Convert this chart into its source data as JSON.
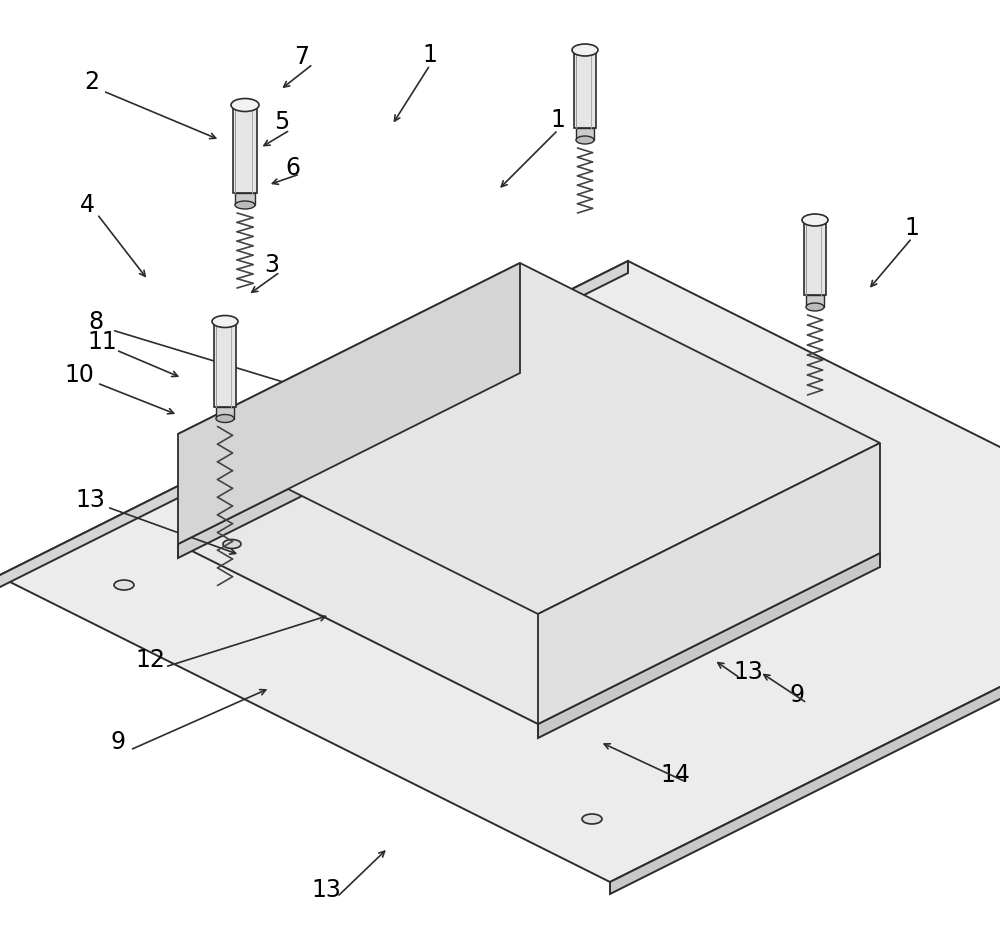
{
  "bg_color": "#ffffff",
  "lc": "#2c2c2c",
  "fin_face_color": "#f0f0f0",
  "fin_top_color": "#e0e0e0",
  "fin_side_color": "#d8d8d8",
  "base_top_color": "#e8e8e8",
  "base_left_color": "#d0d0d0",
  "base_right_color": "#c8c8c8",
  "board_top_color": "#ececec",
  "board_front_color": "#d5d5d5",
  "board_right_color": "#c8c8c8",
  "bolt_body_color": "#e5e5e5",
  "bolt_cap_color": "#f2f2f2",
  "bolt_shadow_color": "#cccccc",
  "spring_color": "#555555"
}
